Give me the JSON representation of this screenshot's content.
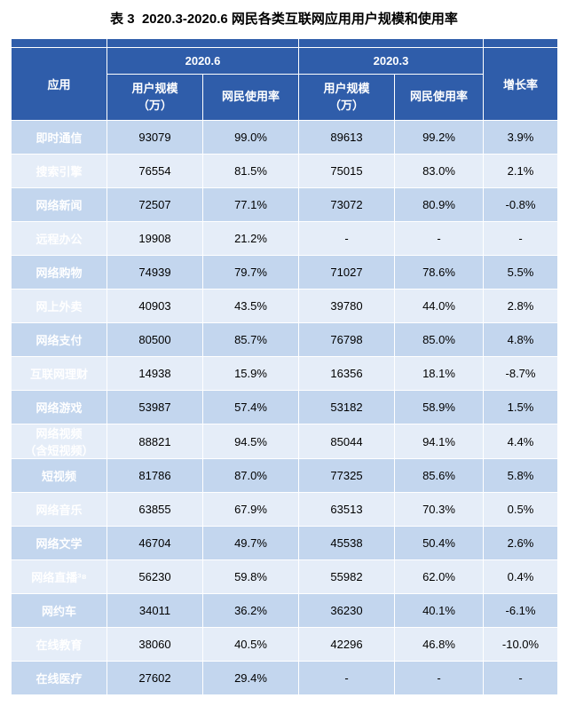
{
  "title_prefix": "表 3",
  "title_text": "2020.3-2020.6 网民各类互联网应用用户规模和使用率",
  "title_fontsize": 15,
  "colors": {
    "header_bg": "#2f5daa",
    "header_fg": "#ffffff",
    "row_even_bg": "#c3d6ee",
    "row_odd_bg": "#e5edf8",
    "border": "#ffffff",
    "text": "#000000",
    "page_bg": "#ffffff"
  },
  "periods": [
    "2020.6",
    "2020.3"
  ],
  "columns": {
    "app": "应用",
    "users": "用户规模\n（万）",
    "rate": "网民使用率",
    "growth": "增长率"
  },
  "rows": [
    {
      "app": "即时通信",
      "u1": "93079",
      "r1": "99.0%",
      "u2": "89613",
      "r2": "99.2%",
      "g": "3.9%"
    },
    {
      "app": "搜索引擎",
      "u1": "76554",
      "r1": "81.5%",
      "u2": "75015",
      "r2": "83.0%",
      "g": "2.1%"
    },
    {
      "app": "网络新闻",
      "u1": "72507",
      "r1": "77.1%",
      "u2": "73072",
      "r2": "80.9%",
      "g": "-0.8%"
    },
    {
      "app": "远程办公",
      "u1": "19908",
      "r1": "21.2%",
      "u2": "-",
      "r2": "-",
      "g": "-"
    },
    {
      "app": "网络购物",
      "u1": "74939",
      "r1": "79.7%",
      "u2": "71027",
      "r2": "78.6%",
      "g": "5.5%"
    },
    {
      "app": "网上外卖",
      "u1": "40903",
      "r1": "43.5%",
      "u2": "39780",
      "r2": "44.0%",
      "g": "2.8%"
    },
    {
      "app": "网络支付",
      "u1": "80500",
      "r1": "85.7%",
      "u2": "76798",
      "r2": "85.0%",
      "g": "4.8%"
    },
    {
      "app": "互联网理财",
      "u1": "14938",
      "r1": "15.9%",
      "u2": "16356",
      "r2": "18.1%",
      "g": "-8.7%"
    },
    {
      "app": "网络游戏",
      "u1": "53987",
      "r1": "57.4%",
      "u2": "53182",
      "r2": "58.9%",
      "g": "1.5%"
    },
    {
      "app": "网络视频\n（含短视频）",
      "u1": "88821",
      "r1": "94.5%",
      "u2": "85044",
      "r2": "94.1%",
      "g": "4.4%"
    },
    {
      "app": "短视频",
      "u1": "81786",
      "r1": "87.0%",
      "u2": "77325",
      "r2": "85.6%",
      "g": "5.8%"
    },
    {
      "app": "网络音乐",
      "u1": "63855",
      "r1": "67.9%",
      "u2": "63513",
      "r2": "70.3%",
      "g": "0.5%"
    },
    {
      "app": "网络文学",
      "u1": "46704",
      "r1": "49.7%",
      "u2": "45538",
      "r2": "50.4%",
      "g": "2.6%"
    },
    {
      "app": "网络直播³⁸",
      "u1": "56230",
      "r1": "59.8%",
      "u2": "55982",
      "r2": "62.0%",
      "g": "0.4%"
    },
    {
      "app": "网约车",
      "u1": "34011",
      "r1": "36.2%",
      "u2": "36230",
      "r2": "40.1%",
      "g": "-6.1%"
    },
    {
      "app": "在线教育",
      "u1": "38060",
      "r1": "40.5%",
      "u2": "42296",
      "r2": "46.8%",
      "g": "-10.0%"
    },
    {
      "app": "在线医疗",
      "u1": "27602",
      "r1": "29.4%",
      "u2": "-",
      "r2": "-",
      "g": "-"
    }
  ]
}
